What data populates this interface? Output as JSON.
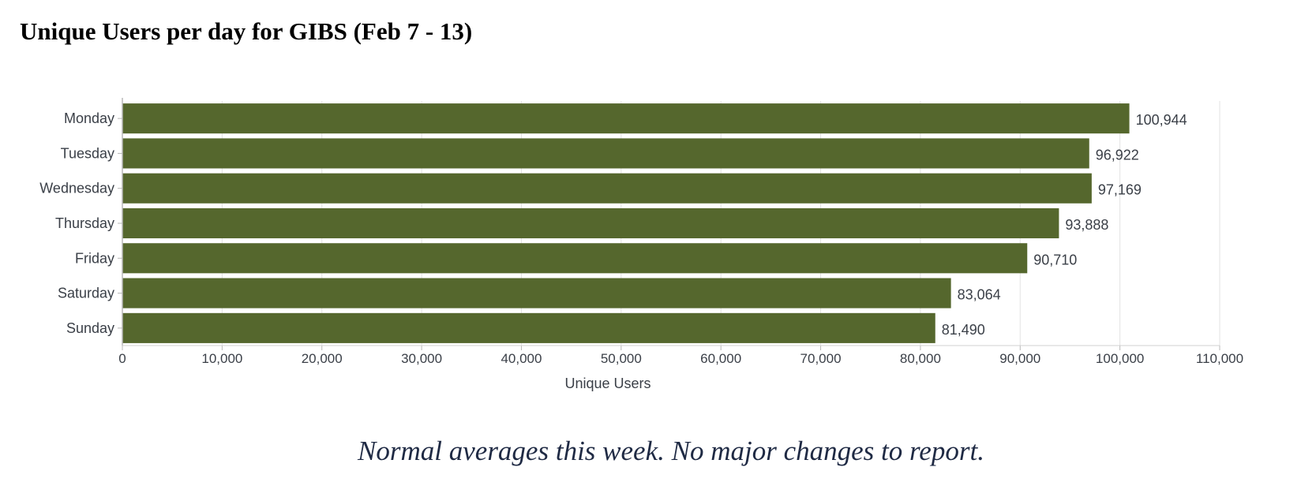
{
  "title": "Unique Users per day for GIBS (Feb 7 - 13)",
  "note": "Normal averages this week.  No major changes to report.",
  "bar_color": "#55672d",
  "chart_data": {
    "type": "bar",
    "orientation": "horizontal",
    "categories": [
      "Monday",
      "Tuesday",
      "Wednesday",
      "Thursday",
      "Friday",
      "Saturday",
      "Sunday"
    ],
    "values": [
      100944,
      96922,
      97169,
      93888,
      90710,
      83064,
      81490
    ],
    "value_labels": [
      "100,944",
      "96,922",
      "97,169",
      "93,888",
      "90,710",
      "83,064",
      "81,490"
    ],
    "xlabel": "Unique Users",
    "ylabel": "",
    "xlim": [
      0,
      110000
    ],
    "xticks": [
      0,
      10000,
      20000,
      30000,
      40000,
      50000,
      60000,
      70000,
      80000,
      90000,
      100000,
      110000
    ],
    "xtick_labels": [
      "0",
      "10,000",
      "20,000",
      "30,000",
      "40,000",
      "50,000",
      "60,000",
      "70,000",
      "80,000",
      "90,000",
      "100,000",
      "110,000"
    ],
    "grid": true,
    "legend": "none"
  }
}
